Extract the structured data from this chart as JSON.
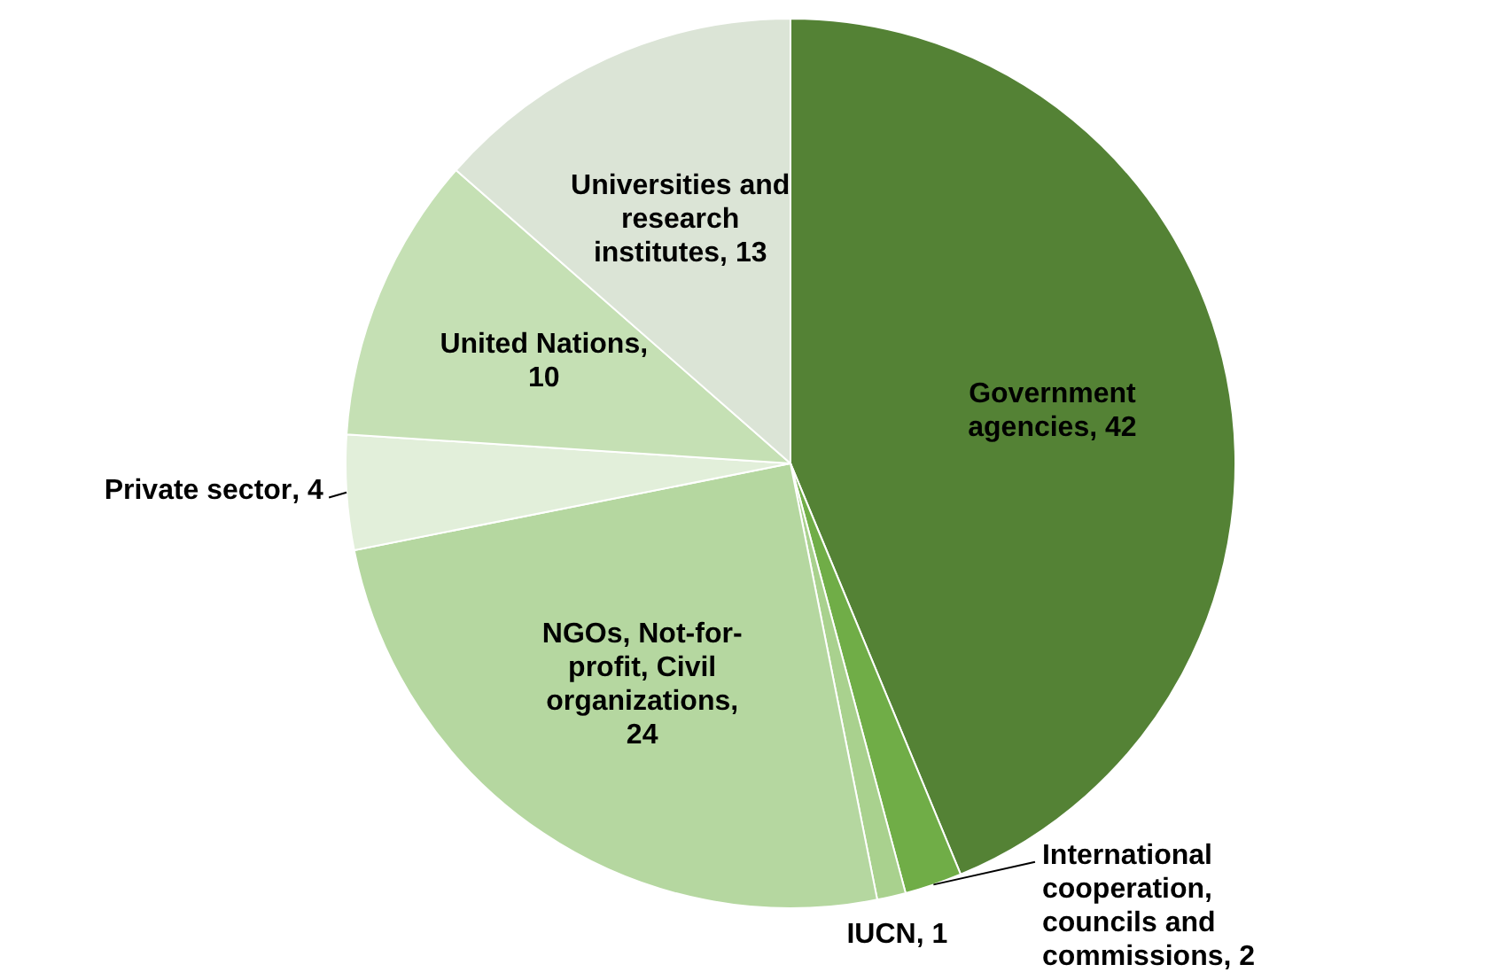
{
  "chart_data": {
    "type": "pie",
    "categories": [
      "Government agencies",
      "International cooperation, councils and commissions",
      "IUCN",
      "NGOs, Not-for-profit, Civil organizations",
      "Private sector",
      "United Nations",
      "Universities and research institutes"
    ],
    "values": [
      42,
      2,
      1,
      24,
      4,
      10,
      13
    ],
    "colors": [
      "#548235",
      "#70ad47",
      "#a9d18e",
      "#b5d7a0",
      "#e2efda",
      "#c5e0b4",
      "#dbe4d6"
    ],
    "value_labels": [
      ", 42",
      ", 2",
      ", 1",
      ", 24",
      ", 4",
      ", 10",
      ", 13"
    ],
    "legend": false
  }
}
